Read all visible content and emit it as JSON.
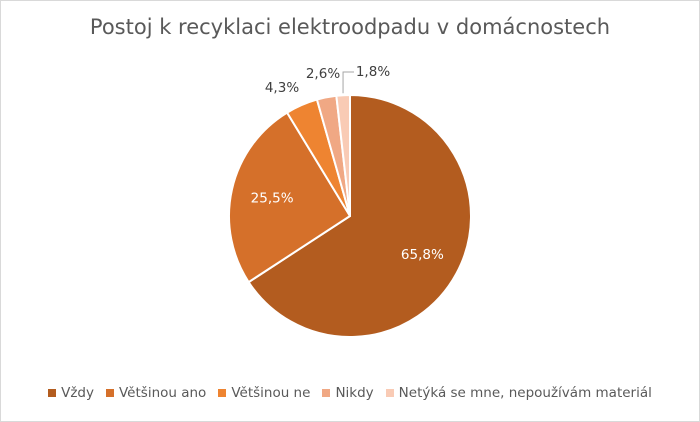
{
  "chart_data": {
    "type": "pie",
    "title": "Postoj k recyklaci elektroodpadu v domácnostech",
    "categories": [
      "Vždy",
      "Většinou ano",
      "Většinou ne",
      "Nikdy",
      "Netýká se mne, nepoužívám materiál"
    ],
    "values": [
      65.8,
      25.5,
      4.3,
      2.6,
      1.8
    ],
    "labels": [
      "65,8%",
      "25,5%",
      "4,3%",
      "2,6%",
      "1,8%"
    ],
    "colors": [
      "#b35c1f",
      "#d5702a",
      "#ee8431",
      "#f0a884",
      "#f9cbb5"
    ],
    "legend_position": "bottom",
    "start_angle": 0,
    "direction": "clockwise"
  }
}
